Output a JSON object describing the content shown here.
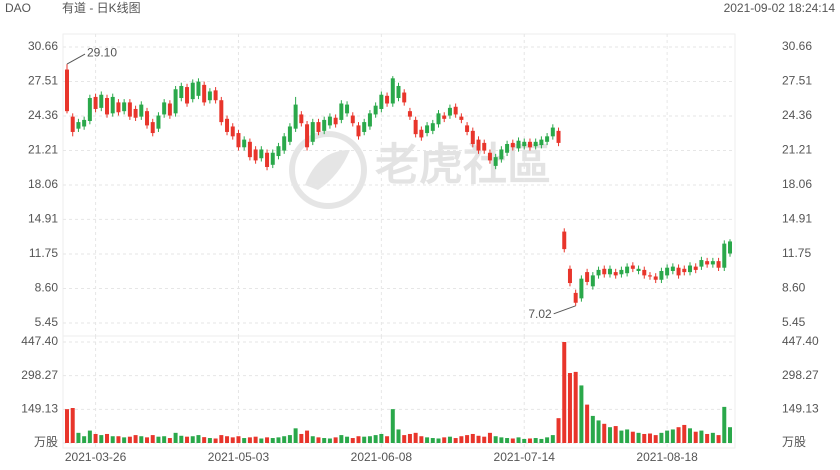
{
  "chart_data": {
    "type": "candlestick",
    "symbol": "DAO",
    "title": "有道 - 日K线图",
    "timestamp": "2021-09-02 18:24:14",
    "up_color": "#2aa84a",
    "down_color": "#e8352b",
    "grid": true,
    "categories": [
      null,
      null,
      null,
      null,
      null,
      "2021-03-26",
      null,
      null,
      null,
      null,
      null,
      null,
      null,
      null,
      null,
      null,
      null,
      null,
      null,
      null,
      null,
      null,
      null,
      null,
      null,
      null,
      null,
      null,
      null,
      null,
      "2021-05-03",
      null,
      null,
      null,
      null,
      null,
      null,
      null,
      null,
      null,
      null,
      null,
      null,
      null,
      null,
      null,
      null,
      null,
      null,
      null,
      null,
      null,
      null,
      null,
      null,
      "2021-06-08",
      null,
      null,
      null,
      null,
      null,
      null,
      null,
      null,
      null,
      null,
      null,
      null,
      null,
      null,
      null,
      null,
      null,
      null,
      null,
      null,
      null,
      null,
      null,
      null,
      "2021-07-14",
      null,
      null,
      null,
      null,
      null,
      null,
      null,
      null,
      null,
      null,
      null,
      null,
      null,
      null,
      null,
      null,
      null,
      null,
      null,
      null,
      null,
      null,
      null,
      null,
      "2021-08-18",
      null,
      null,
      null,
      null,
      null,
      null,
      null,
      null,
      null,
      null,
      null
    ],
    "open": [
      28.6,
      24.3,
      23.2,
      23.4,
      23.9,
      26.1,
      25.1,
      26.0,
      24.6,
      25.6,
      24.8,
      25.6,
      25.0,
      24.3,
      24.8,
      23.8,
      23.2,
      24.5,
      25.5,
      24.6,
      26.0,
      27.0,
      25.9,
      26.2,
      27.2,
      25.8,
      26.7,
      25.8,
      24.1,
      23.4,
      22.8,
      21.5,
      22.0,
      21.3,
      20.5,
      21.0,
      19.9,
      20.7,
      21.2,
      22.0,
      23.2,
      24.5,
      23.6,
      22.0,
      23.8,
      23.0,
      23.5,
      24.2,
      24.0,
      24.6,
      24.4,
      23.5,
      22.9,
      23.4,
      24.5,
      25.0,
      26.2,
      25.5,
      26.0,
      26.5,
      24.8,
      24.0,
      23.1,
      22.8,
      23.0,
      23.6,
      24.4,
      24.4,
      25.2,
      24.3,
      23.5,
      23.0,
      22.2,
      21.9,
      21.0,
      19.8,
      20.4,
      21.0,
      21.9,
      21.4,
      21.6,
      22.0,
      21.6,
      21.7,
      22.0,
      22.5,
      23.0,
      13.8,
      10.4,
      8.2,
      7.7,
      10.1,
      8.8,
      9.8,
      10.4,
      9.9,
      10.1,
      9.9,
      10.0,
      10.7,
      10.2,
      10.3,
      9.8,
      9.7,
      9.4,
      9.8,
      10.2,
      10.5,
      10.4,
      10.1,
      10.6,
      10.6,
      11.1,
      10.8,
      11.1,
      10.5,
      11.8
    ],
    "high": [
      29.1,
      24.6,
      24.1,
      24.3,
      26.3,
      26.4,
      26.6,
      26.3,
      26.4,
      25.9,
      25.9,
      25.9,
      25.3,
      25.7,
      25.1,
      24.1,
      24.7,
      25.9,
      25.8,
      27.1,
      27.4,
      27.3,
      27.7,
      27.8,
      27.5,
      26.9,
      27.0,
      26.1,
      24.4,
      23.7,
      23.1,
      22.5,
      22.3,
      21.6,
      21.6,
      21.3,
      21.3,
      21.9,
      22.8,
      23.7,
      26.1,
      24.8,
      23.9,
      24.1,
      24.1,
      24.3,
      24.6,
      24.5,
      25.8,
      25.7,
      24.7,
      23.8,
      24.1,
      24.9,
      25.6,
      26.6,
      26.5,
      28.0,
      27.4,
      26.8,
      25.1,
      24.3,
      23.4,
      23.8,
      24.0,
      24.9,
      24.7,
      25.4,
      25.5,
      24.6,
      23.8,
      23.3,
      22.5,
      22.2,
      21.3,
      20.9,
      21.6,
      22.1,
      22.2,
      22.4,
      22.3,
      22.3,
      22.3,
      22.5,
      22.8,
      23.6,
      23.3,
      14.1,
      10.7,
      8.5,
      9.8,
      10.4,
      10.1,
      10.6,
      10.7,
      10.7,
      10.4,
      10.6,
      10.9,
      11.0,
      10.7,
      10.6,
      10.1,
      10.0,
      10.5,
      10.8,
      10.9,
      10.8,
      10.7,
      11.0,
      10.9,
      11.5,
      11.4,
      11.4,
      11.4,
      13.0,
      13.1
    ],
    "low": [
      24.6,
      22.5,
      22.9,
      23.1,
      23.6,
      24.7,
      24.8,
      24.2,
      24.3,
      24.4,
      24.5,
      24.0,
      23.9,
      24.0,
      23.2,
      22.5,
      22.9,
      24.2,
      24.1,
      24.3,
      25.7,
      25.2,
      25.6,
      25.9,
      25.3,
      25.5,
      25.5,
      23.5,
      22.6,
      22.2,
      21.2,
      21.2,
      20.3,
      20.0,
      20.2,
      19.4,
      19.6,
      20.4,
      20.9,
      21.7,
      22.9,
      23.4,
      21.2,
      21.7,
      22.6,
      22.7,
      23.2,
      23.3,
      23.7,
      24.3,
      23.4,
      22.2,
      22.6,
      23.1,
      24.2,
      24.7,
      25.2,
      25.2,
      25.7,
      25.3,
      24.0,
      22.4,
      22.1,
      22.5,
      22.7,
      23.3,
      23.8,
      24.1,
      24.2,
      23.7,
      22.6,
      21.5,
      20.9,
      20.9,
      20.0,
      19.5,
      20.1,
      20.7,
      21.2,
      21.1,
      21.3,
      21.2,
      21.3,
      21.4,
      21.7,
      22.2,
      21.6,
      11.9,
      8.8,
      7.02,
      7.4,
      8.9,
      8.5,
      9.5,
      9.6,
      9.6,
      9.5,
      9.6,
      9.7,
      10.1,
      9.9,
      9.5,
      9.4,
      9.1,
      9.1,
      9.5,
      9.9,
      9.5,
      9.8,
      9.8,
      10.0,
      10.3,
      10.5,
      10.5,
      10.2,
      10.2,
      11.5
    ],
    "close": [
      24.8,
      22.9,
      23.8,
      24.0,
      26.0,
      25.0,
      26.3,
      24.5,
      26.1,
      24.7,
      25.6,
      24.3,
      24.2,
      25.4,
      23.5,
      22.8,
      24.4,
      25.6,
      24.4,
      26.8,
      27.1,
      25.5,
      27.4,
      27.5,
      25.6,
      26.6,
      25.8,
      23.8,
      22.9,
      22.5,
      21.5,
      22.2,
      20.6,
      20.3,
      21.3,
      19.7,
      21.0,
      21.6,
      22.5,
      23.4,
      25.4,
      23.7,
      21.5,
      23.8,
      22.9,
      24.0,
      24.3,
      23.6,
      25.5,
      25.4,
      23.7,
      22.5,
      23.8,
      24.6,
      25.3,
      26.3,
      25.5,
      27.8,
      27.1,
      25.6,
      24.3,
      22.7,
      22.4,
      23.5,
      23.7,
      24.6,
      24.1,
      25.1,
      24.5,
      24.0,
      22.9,
      21.8,
      21.2,
      21.2,
      20.3,
      20.6,
      21.3,
      21.8,
      21.5,
      22.1,
      22.0,
      21.5,
      22.0,
      22.2,
      22.5,
      23.3,
      21.9,
      12.2,
      9.1,
      7.3,
      9.5,
      9.2,
      9.8,
      10.3,
      9.9,
      10.4,
      9.8,
      10.3,
      10.6,
      10.4,
      10.4,
      9.8,
      9.7,
      9.4,
      10.2,
      10.5,
      10.6,
      9.8,
      10.1,
      10.7,
      10.3,
      11.2,
      10.8,
      11.1,
      10.5,
      12.7,
      12.9
    ],
    "volume": [
      150,
      155,
      45,
      30,
      55,
      40,
      35,
      40,
      30,
      30,
      25,
      28,
      35,
      30,
      25,
      35,
      28,
      30,
      22,
      45,
      32,
      28,
      30,
      35,
      26,
      22,
      20,
      35,
      30,
      25,
      30,
      22,
      25,
      28,
      20,
      25,
      22,
      25,
      30,
      35,
      65,
      40,
      55,
      30,
      25,
      22,
      20,
      25,
      35,
      28,
      22,
      30,
      28,
      30,
      35,
      40,
      30,
      150,
      60,
      35,
      40,
      45,
      30,
      25,
      22,
      20,
      25,
      28,
      22,
      30,
      35,
      40,
      32,
      28,
      45,
      30,
      25,
      22,
      20,
      25,
      18,
      20,
      22,
      18,
      25,
      35,
      110,
      447.4,
      310,
      315,
      255,
      170,
      120,
      100,
      85,
      70,
      75,
      55,
      60,
      50,
      45,
      40,
      42,
      35,
      45,
      55,
      60,
      70,
      80,
      65,
      50,
      55,
      40,
      45,
      35,
      160,
      70
    ],
    "ylim": [
      5.45,
      30.66
    ],
    "yticks": [
      30.66,
      27.51,
      24.36,
      21.21,
      18.06,
      14.91,
      11.75,
      {
        "value": 8.6,
        "label": "8.60"
      },
      5.45
    ],
    "vlim": [
      0,
      447.4
    ],
    "vticks": [
      {
        "value": 447.4,
        "label": "447.40"
      },
      298.27,
      149.13,
      {
        "value": 0,
        "label": "万股"
      }
    ],
    "annotations": [
      {
        "label": "29.10",
        "value": 29.1
      },
      {
        "label": "7.02",
        "value": 7.02
      }
    ]
  }
}
